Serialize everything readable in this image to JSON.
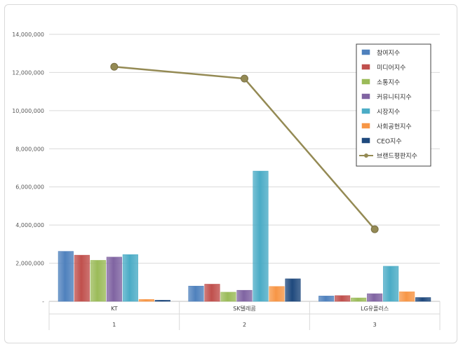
{
  "chart_data": {
    "type": "bar",
    "categories": [
      "KT",
      "SK텔레콤",
      "LG유플러스"
    ],
    "category_numbers": [
      "1",
      "2",
      "3"
    ],
    "ylim": [
      0,
      14000000
    ],
    "y_ticks": [
      "-",
      "2,000,000",
      "4,000,000",
      "6,000,000",
      "8,000,000",
      "10,000,000",
      "12,000,000",
      "14,000,000"
    ],
    "grid": true,
    "legend_position": "top-right",
    "series": [
      {
        "name": "참여지수",
        "kind": "bar",
        "color": "#4f81bd",
        "values": [
          2620000,
          800000,
          280000
        ]
      },
      {
        "name": "미디어지수",
        "kind": "bar",
        "color": "#c0504d",
        "values": [
          2420000,
          900000,
          300000
        ]
      },
      {
        "name": "소통지수",
        "kind": "bar",
        "color": "#9bbb59",
        "values": [
          2150000,
          480000,
          180000
        ]
      },
      {
        "name": "커뮤니티지수",
        "kind": "bar",
        "color": "#8064a2",
        "values": [
          2320000,
          580000,
          400000
        ]
      },
      {
        "name": "시장지수",
        "kind": "bar",
        "color": "#4bacc6",
        "values": [
          2450000,
          6830000,
          1840000
        ]
      },
      {
        "name": "사회공헌지수",
        "kind": "bar",
        "color": "#f79646",
        "values": [
          100000,
          780000,
          500000
        ]
      },
      {
        "name": "CEO지수",
        "kind": "bar",
        "color": "#1f497d",
        "values": [
          60000,
          1180000,
          200000
        ]
      },
      {
        "name": "브랜드평판지수",
        "kind": "line",
        "color": "#948a54",
        "values": [
          12300000,
          11680000,
          3780000
        ]
      }
    ]
  }
}
